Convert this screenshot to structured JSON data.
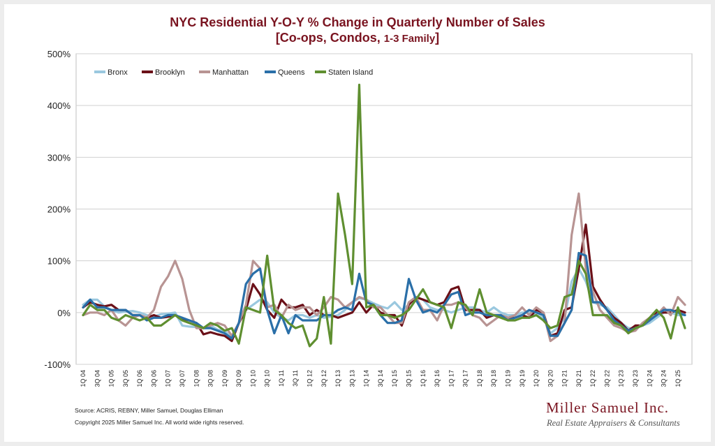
{
  "title_line1": "NYC Residential Y-O-Y % Change in Quarterly Number of Sales",
  "title_line2_main": "[Co-ops, Condos, ",
  "title_line2_small": "1-3 Family",
  "title_line2_end": "]",
  "source": "Source: ACRIS, REBNY, Miller Samuel, Douglas Elliman",
  "copyright": "Copyright 2025 Miller Samuel Inc.  All world wide rights reserved.",
  "logo": {
    "name": "Miller Samuel Inc.",
    "tagline": "Real Estate Appraisers & Consultants"
  },
  "chart_data": {
    "type": "line",
    "yticks": [
      "-100%",
      "0%",
      "100%",
      "200%",
      "300%",
      "400%",
      "500%"
    ],
    "ylim": [
      -100,
      500
    ],
    "grid": true,
    "legend_position": "top-left",
    "categories": [
      "1Q 04",
      "2Q 04",
      "3Q 04",
      "4Q 04",
      "1Q 05",
      "2Q 05",
      "3Q 05",
      "4Q 05",
      "1Q 06",
      "2Q 06",
      "3Q 06",
      "4Q 06",
      "1Q 07",
      "2Q 07",
      "3Q 07",
      "4Q 07",
      "1Q 08",
      "2Q 08",
      "3Q 08",
      "4Q 08",
      "1Q 09",
      "2Q 09",
      "3Q 09",
      "4Q 09",
      "1Q 10",
      "2Q 10",
      "3Q 10",
      "4Q 10",
      "1Q 11",
      "2Q 11",
      "3Q 11",
      "4Q 11",
      "1Q 12",
      "2Q 12",
      "3Q 12",
      "4Q 12",
      "1Q 13",
      "2Q 13",
      "3Q 13",
      "4Q 13",
      "1Q 14",
      "2Q 14",
      "3Q 14",
      "4Q 14",
      "1Q 15",
      "2Q 15",
      "3Q 15",
      "4Q 15",
      "1Q 16",
      "2Q 16",
      "3Q 16",
      "4Q 16",
      "1Q 17",
      "2Q 17",
      "3Q 17",
      "4Q 17",
      "1Q 18",
      "2Q 18",
      "3Q 18",
      "4Q 18",
      "1Q 19",
      "2Q 19",
      "3Q 19",
      "4Q 19",
      "1Q 20",
      "2Q 20",
      "3Q 20",
      "4Q 20",
      "1Q 21",
      "2Q 21",
      "3Q 21",
      "4Q 21",
      "1Q 22",
      "2Q 22",
      "3Q 22",
      "4Q 22",
      "1Q 23",
      "2Q 23",
      "3Q 23",
      "4Q 23",
      "1Q 24",
      "2Q 24",
      "3Q 24",
      "4Q 24",
      "1Q 25",
      "2Q 25"
    ],
    "xtick_labels": [
      "1Q 04",
      "3Q 04",
      "1Q 05",
      "3Q 05",
      "1Q 06",
      "3Q 06",
      "1Q 07",
      "3Q 07",
      "1Q 08",
      "3Q 08",
      "1Q 09",
      "3Q 09",
      "1Q 10",
      "3Q 10",
      "1Q 11",
      "3Q 11",
      "1Q 12",
      "3Q 12",
      "1Q 13",
      "3Q 13",
      "1Q 14",
      "3Q 14",
      "1Q 15",
      "3Q 15",
      "1Q 16",
      "3Q 16",
      "1Q 17",
      "3Q 17",
      "1Q 18",
      "3Q 18",
      "1Q 19",
      "3Q 19",
      "1Q 20",
      "3Q 20",
      "1Q 21",
      "3Q 21",
      "1Q 22",
      "3Q 22",
      "1Q 23",
      "3Q 23",
      "1Q 24",
      "3Q 24",
      "1Q 25"
    ],
    "series": [
      {
        "name": "Bronx",
        "color": "#9ac8df",
        "values": [
          15,
          25,
          25,
          12,
          5,
          0,
          2,
          3,
          0,
          -5,
          -8,
          -3,
          -2,
          0,
          -25,
          -27,
          -28,
          -30,
          -25,
          -33,
          -35,
          -50,
          -20,
          5,
          15,
          25,
          20,
          0,
          -10,
          -15,
          -5,
          -5,
          -10,
          -5,
          -10,
          -8,
          -5,
          5,
          20,
          28,
          25,
          18,
          12,
          8,
          20,
          5,
          15,
          30,
          25,
          10,
          5,
          5,
          0,
          5,
          10,
          10,
          5,
          0,
          10,
          0,
          -5,
          -5,
          0,
          0,
          -5,
          -10,
          -40,
          -30,
          -10,
          60,
          85,
          60,
          20,
          15,
          10,
          -5,
          -20,
          -30,
          -30,
          -25,
          -20,
          -10,
          0,
          0,
          -5,
          -5
        ]
      },
      {
        "name": "Brooklyn",
        "color": "#6b1018",
        "values": [
          10,
          20,
          15,
          12,
          15,
          5,
          5,
          -5,
          -5,
          -10,
          -5,
          -10,
          -8,
          -5,
          -12,
          -15,
          -20,
          -42,
          -38,
          -42,
          -45,
          -55,
          -20,
          5,
          55,
          35,
          5,
          -10,
          25,
          10,
          10,
          15,
          -5,
          5,
          -5,
          -5,
          -10,
          -5,
          0,
          20,
          0,
          15,
          0,
          -5,
          -5,
          -25,
          15,
          30,
          25,
          20,
          15,
          20,
          45,
          50,
          5,
          5,
          5,
          -10,
          -5,
          -5,
          -10,
          -10,
          -5,
          -10,
          5,
          0,
          -45,
          -40,
          5,
          10,
          85,
          170,
          50,
          25,
          5,
          -10,
          -20,
          -35,
          -25,
          -25,
          -15,
          0,
          0,
          0,
          5,
          0
        ]
      },
      {
        "name": "Manhattan",
        "color": "#b89493",
        "values": [
          -5,
          0,
          0,
          -5,
          5,
          -15,
          -25,
          -10,
          -5,
          -10,
          5,
          50,
          70,
          100,
          65,
          5,
          -30,
          -30,
          -25,
          -20,
          -25,
          -45,
          -20,
          15,
          100,
          85,
          10,
          15,
          -10,
          15,
          5,
          10,
          10,
          -5,
          10,
          30,
          25,
          10,
          20,
          30,
          25,
          10,
          10,
          -5,
          -20,
          -20,
          20,
          30,
          5,
          5,
          -15,
          15,
          15,
          20,
          10,
          -5,
          -10,
          -25,
          -15,
          -5,
          -10,
          -5,
          10,
          -5,
          10,
          0,
          -55,
          -45,
          -20,
          150,
          230,
          85,
          40,
          5,
          -10,
          -25,
          -30,
          -38,
          -35,
          -20,
          -10,
          -5,
          10,
          -5,
          30,
          15
        ]
      },
      {
        "name": "Queens",
        "color": "#2a6fa8",
        "values": [
          10,
          25,
          10,
          10,
          5,
          5,
          5,
          -5,
          -5,
          -15,
          -10,
          -10,
          -5,
          -5,
          -10,
          -15,
          -20,
          -30,
          -30,
          -35,
          -40,
          -50,
          -20,
          55,
          75,
          85,
          5,
          -40,
          -5,
          -40,
          -5,
          -15,
          -15,
          -15,
          -5,
          -5,
          5,
          10,
          5,
          75,
          20,
          15,
          -5,
          -20,
          -20,
          -15,
          65,
          25,
          0,
          5,
          0,
          15,
          35,
          40,
          -5,
          0,
          0,
          -5,
          -5,
          -5,
          -15,
          -10,
          -5,
          5,
          0,
          -5,
          -45,
          -45,
          -20,
          5,
          115,
          110,
          20,
          20,
          5,
          -15,
          -25,
          -35,
          -30,
          -25,
          -15,
          -5,
          5,
          5,
          0,
          -5
        ]
      },
      {
        "name": "Staten Island",
        "color": "#5f8f30",
        "values": [
          -5,
          15,
          5,
          5,
          -10,
          -15,
          -5,
          -10,
          -15,
          -10,
          -25,
          -25,
          -15,
          -5,
          -15,
          -20,
          -25,
          -30,
          -20,
          -25,
          -35,
          -30,
          -60,
          10,
          5,
          0,
          110,
          5,
          -5,
          -20,
          -30,
          -25,
          -65,
          -50,
          30,
          -60,
          230,
          150,
          55,
          440,
          10,
          15,
          -5,
          -5,
          -10,
          -5,
          5,
          25,
          45,
          20,
          15,
          10,
          -30,
          20,
          15,
          -5,
          45,
          0,
          -5,
          -10,
          -15,
          -15,
          -10,
          -10,
          -5,
          -15,
          -30,
          -25,
          30,
          35,
          100,
          75,
          -5,
          -5,
          -5,
          -20,
          -25,
          -40,
          -30,
          -25,
          -10,
          5,
          -10,
          -50,
          10,
          -30
        ]
      }
    ]
  }
}
